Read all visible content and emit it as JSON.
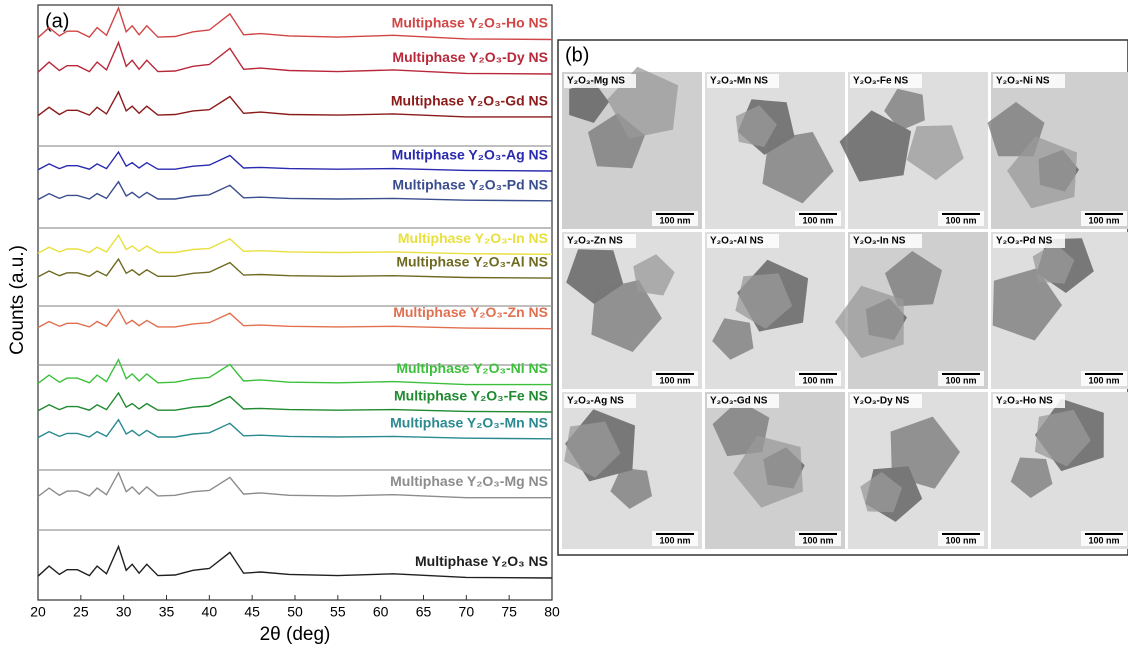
{
  "chart_data": {
    "type": "line",
    "panel_label": "(a)",
    "xlabel": "2θ (deg)",
    "ylabel": "Counts (a.u.)",
    "xlim": [
      20,
      80
    ],
    "xticks": [
      20,
      25,
      30,
      35,
      40,
      45,
      50,
      55,
      60,
      65,
      70,
      75,
      80
    ],
    "ylim": [
      0,
      100
    ],
    "x": [
      20,
      21.3,
      22.5,
      23.4,
      24.6,
      26,
      26.9,
      28,
      29.4,
      30.3,
      31,
      31.8,
      32.7,
      34,
      36,
      38.1,
      40,
      42.4,
      44,
      46,
      49.3,
      55,
      61.5,
      70,
      80
    ],
    "series": [
      {
        "name": "Multiphase Y₂O₃-Ho NS",
        "color": "#d04545",
        "values": [
          94.5,
          96.2,
          94.8,
          95.6,
          95.6,
          94.6,
          96.2,
          94.9,
          99.5,
          95.5,
          96.5,
          95,
          96.5,
          94.6,
          94.7,
          95.5,
          95.8,
          98.5,
          95,
          95.2,
          94.8,
          94.6,
          94.9,
          94.3,
          94.2
        ]
      },
      {
        "name": "Multiphase Y₂O₃-Dy NS",
        "color": "#b8283a",
        "values": [
          88.7,
          90.4,
          89,
          89.8,
          89.8,
          88.8,
          90.4,
          89.1,
          93.7,
          89.7,
          90.7,
          89.2,
          90.7,
          88.8,
          88.9,
          89.7,
          90,
          92.7,
          89.2,
          89.4,
          89,
          88.8,
          89.1,
          88.5,
          88.4
        ]
      },
      {
        "name": "Multiphase Y₂O₃-Gd NS",
        "color": "#8b1a1a",
        "values": [
          81.4,
          82.8,
          81.6,
          82.3,
          82.3,
          81.5,
          82.8,
          81.7,
          85.4,
          82.2,
          83,
          81.8,
          83,
          81.5,
          81.6,
          82.2,
          82.4,
          84.6,
          81.8,
          82,
          81.6,
          81.5,
          81.7,
          81.2,
          81.2
        ]
      },
      {
        "name": "Multiphase Y₂O₃-Ag NS",
        "color": "#2a2ab0",
        "values": [
          72.3,
          73.3,
          72.5,
          73,
          73,
          72.4,
          73.3,
          72.5,
          75.3,
          72.9,
          73.5,
          72.6,
          73.5,
          72.4,
          72.4,
          72.9,
          73.1,
          74.7,
          72.6,
          72.7,
          72.5,
          72.4,
          72.5,
          72.2,
          72.1
        ]
      },
      {
        "name": "Multiphase Y₂O₃-Pd NS",
        "color": "#3a4e8e",
        "values": [
          67.3,
          68.3,
          67.5,
          68,
          68,
          67.4,
          68.3,
          67.5,
          70.3,
          67.9,
          68.5,
          67.6,
          68.5,
          67.4,
          67.4,
          67.9,
          68.1,
          69.7,
          67.6,
          67.7,
          67.5,
          67.4,
          67.5,
          67.2,
          67.1
        ]
      },
      {
        "name": "Multiphase Y₂O₃-In NS",
        "color": "#e8e040",
        "values": [
          58.3,
          59.3,
          58.5,
          59,
          59,
          58.4,
          59.3,
          58.5,
          61.3,
          58.9,
          59.5,
          58.6,
          59.5,
          58.4,
          58.4,
          58.9,
          59.1,
          60.7,
          58.6,
          58.7,
          58.5,
          58.4,
          58.5,
          58.2,
          58.1
        ]
      },
      {
        "name": "Multiphase Y₂O₃-Al NS",
        "color": "#6e6a22",
        "values": [
          54.3,
          55.3,
          54.5,
          55,
          55,
          54.4,
          55.3,
          54.5,
          57.3,
          54.9,
          55.5,
          54.6,
          55.5,
          54.4,
          54.4,
          54.9,
          55.1,
          56.7,
          54.6,
          54.7,
          54.5,
          54.4,
          54.5,
          54.2,
          54.1
        ]
      },
      {
        "name": "Multiphase Y₂O₃-Zn NS",
        "color": "#e07050",
        "values": [
          45.8,
          46.8,
          46,
          46.5,
          46.5,
          45.9,
          46.8,
          46,
          48.8,
          46.4,
          47,
          46.1,
          47,
          45.9,
          45.9,
          46.4,
          46.6,
          48.2,
          46.1,
          46.2,
          46,
          45.9,
          46,
          45.7,
          45.6
        ]
      },
      {
        "name": "Multiphase Y₂O₃-Ni NS",
        "color": "#3cc03c",
        "values": [
          36.4,
          37.8,
          36.6,
          37.3,
          37.3,
          36.5,
          37.8,
          36.7,
          40.4,
          37.2,
          38,
          36.8,
          38,
          36.5,
          36.6,
          37.2,
          37.4,
          39.6,
          36.8,
          37,
          36.6,
          36.5,
          36.7,
          36.2,
          36.2
        ]
      },
      {
        "name": "Multiphase Y₂O₃-Fe NS",
        "color": "#1f8a2f",
        "values": [
          31.8,
          32.8,
          32,
          32.5,
          32.5,
          31.9,
          32.8,
          32,
          34.8,
          32.4,
          33,
          32.1,
          33,
          31.9,
          31.9,
          32.4,
          32.6,
          34.2,
          32.1,
          32.2,
          32,
          31.9,
          32,
          31.7,
          31.6
        ]
      },
      {
        "name": "Multiphase Y₂O₃-Mn NS",
        "color": "#2a8a90",
        "values": [
          27.3,
          28.3,
          27.5,
          28,
          28,
          27.4,
          28.3,
          27.5,
          30.3,
          27.9,
          28.5,
          27.6,
          28.5,
          27.4,
          27.4,
          27.9,
          28.1,
          29.7,
          27.6,
          27.7,
          27.5,
          27.4,
          27.5,
          27.2,
          27.1
        ]
      },
      {
        "name": "Multiphase Y₂O₃-Mg NS",
        "color": "#8c8c8c",
        "values": [
          17.4,
          18.8,
          17.6,
          18.3,
          18.3,
          17.5,
          18.8,
          17.7,
          21.4,
          18.2,
          19,
          17.8,
          19,
          17.5,
          17.6,
          18.2,
          18.4,
          20.6,
          17.8,
          18,
          17.6,
          17.5,
          17.7,
          17.2,
          17.2
        ]
      },
      {
        "name": "Multiphase Y₂O₃ NS",
        "color": "#202020",
        "values": [
          4,
          5.7,
          4.3,
          5.1,
          5.1,
          4.1,
          5.7,
          4.4,
          9,
          5,
          6,
          4.5,
          6,
          4.1,
          4.2,
          5,
          5.3,
          8,
          4.5,
          4.7,
          4.3,
          4.1,
          4.4,
          3.8,
          3.7
        ]
      }
    ]
  },
  "panel_b": {
    "label": "(b)",
    "images": [
      {
        "label": "Y₂O₃-Mg NS",
        "scale": "100 nm"
      },
      {
        "label": "Y₂O₃-Mn NS",
        "scale": "100 nm"
      },
      {
        "label": "Y₂O₃-Fe NS",
        "scale": "100 nm"
      },
      {
        "label": "Y₂O₃-Ni NS",
        "scale": "100 nm"
      },
      {
        "label": "Y₂O₃-Zn NS",
        "scale": "100 nm"
      },
      {
        "label": "Y₂O₃-Al NS",
        "scale": "100 nm"
      },
      {
        "label": "Y₂O₃-In NS",
        "scale": "100 nm"
      },
      {
        "label": "Y₂O₃-Pd NS",
        "scale": "100 nm"
      },
      {
        "label": "Y₂O₃-Ag NS",
        "scale": "100 nm"
      },
      {
        "label": "Y₂O₃-Gd NS",
        "scale": "100 nm"
      },
      {
        "label": "Y₂O₃-Dy NS",
        "scale": "100 nm"
      },
      {
        "label": "Y₂O₃-Ho NS",
        "scale": "100 nm"
      }
    ]
  }
}
